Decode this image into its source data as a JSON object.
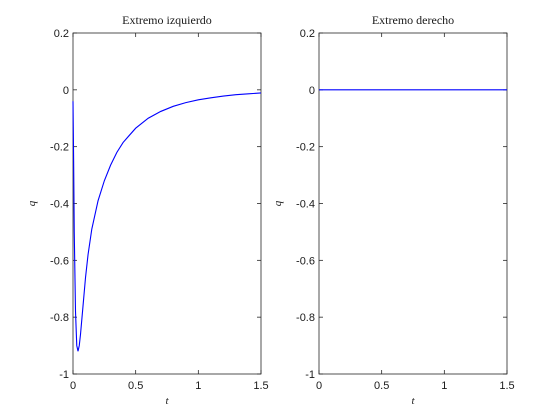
{
  "chart_data": [
    {
      "type": "line",
      "title": "Extremo izquierdo",
      "xlabel": "t",
      "ylabel": "q",
      "xlim": [
        0,
        1.5
      ],
      "ylim": [
        -1,
        0.2
      ],
      "xticks": [
        0,
        0.5,
        1,
        1.5
      ],
      "xtick_labels": [
        "0",
        "0.5",
        "1",
        "1.5"
      ],
      "yticks": [
        -1,
        -0.8,
        -0.6,
        -0.4,
        -0.2,
        0,
        0.2
      ],
      "ytick_labels": [
        "-1",
        "-0.8",
        "-0.6",
        "-0.4",
        "-0.2",
        "0",
        "0.2"
      ],
      "grid": false,
      "color": "#0000ff",
      "series": [
        {
          "x": [
            0,
            0.005,
            0.01,
            0.02,
            0.03,
            0.04,
            0.05,
            0.06,
            0.08,
            0.1,
            0.12,
            0.15,
            0.2,
            0.25,
            0.3,
            0.35,
            0.4,
            0.5,
            0.6,
            0.7,
            0.8,
            0.9,
            1.0,
            1.1,
            1.2,
            1.3,
            1.4,
            1.5
          ],
          "values": [
            -0.04,
            -0.25,
            -0.5,
            -0.78,
            -0.9,
            -0.92,
            -0.9,
            -0.86,
            -0.76,
            -0.66,
            -0.58,
            -0.49,
            -0.39,
            -0.32,
            -0.265,
            -0.22,
            -0.185,
            -0.135,
            -0.1,
            -0.076,
            -0.058,
            -0.045,
            -0.035,
            -0.028,
            -0.022,
            -0.017,
            -0.014,
            -0.011
          ]
        }
      ]
    },
    {
      "type": "line",
      "title": "Extremo derecho",
      "xlabel": "t",
      "ylabel": "q",
      "xlim": [
        0,
        1.5
      ],
      "ylim": [
        -1,
        0.2
      ],
      "xticks": [
        0,
        0.5,
        1,
        1.5
      ],
      "xtick_labels": [
        "0",
        "0.5",
        "1",
        "1.5"
      ],
      "yticks": [
        -1,
        -0.8,
        -0.6,
        -0.4,
        -0.2,
        0,
        0.2
      ],
      "ytick_labels": [
        "-1",
        "-0.8",
        "-0.6",
        "-0.4",
        "-0.2",
        "0",
        "0.2"
      ],
      "grid": false,
      "color": "#0000ff",
      "series": [
        {
          "x": [
            0,
            0.25,
            0.5,
            0.75,
            1.0,
            1.25,
            1.5
          ],
          "values": [
            0,
            0,
            0,
            0,
            0,
            0,
            0
          ]
        }
      ]
    }
  ]
}
